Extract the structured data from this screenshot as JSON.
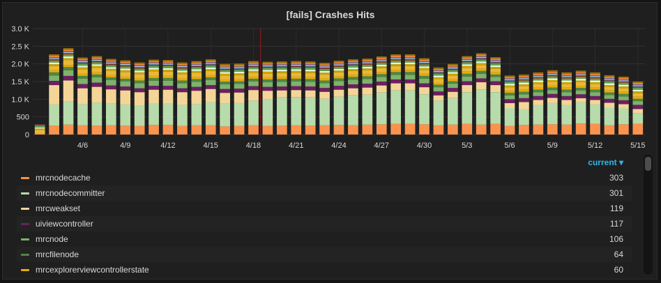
{
  "panel": {
    "title": "[fails] Crashes Hits"
  },
  "legend": {
    "sort_label": "current ▾",
    "items": [
      {
        "name": "mrcnodecache",
        "current": "303",
        "color": "#f9934e"
      },
      {
        "name": "mrcnodecommitter",
        "current": "301",
        "color": "#b7dbab"
      },
      {
        "name": "mrcweakset",
        "current": "119",
        "color": "#f4d598"
      },
      {
        "name": "uiviewcontroller",
        "current": "117",
        "color": "#6d1f62"
      },
      {
        "name": "mrcnode",
        "current": "106",
        "color": "#7eb26d"
      },
      {
        "name": "mrcfilenode",
        "current": "64",
        "color": "#508642"
      },
      {
        "name": "mrcexplorerviewcontrollerstate",
        "current": "60",
        "color": "#e5ac0e"
      }
    ]
  },
  "chart_data": {
    "type": "bar",
    "stacked": true,
    "title": "[fails] Crashes Hits",
    "ylim": [
      0,
      3000
    ],
    "y_ticks": [
      "0",
      "500",
      "1.0 K",
      "1.5 K",
      "2.0 K",
      "2.5 K",
      "3.0 K"
    ],
    "x_tick_labels": [
      "4/6",
      "4/9",
      "4/12",
      "4/15",
      "4/18",
      "4/21",
      "4/24",
      "4/27",
      "4/30",
      "5/3",
      "5/6",
      "5/9",
      "5/12",
      "5/15"
    ],
    "categories": [
      "4/3",
      "4/4",
      "4/5",
      "4/6",
      "4/7",
      "4/8",
      "4/9",
      "4/10",
      "4/11",
      "4/12",
      "4/13",
      "4/14",
      "4/15",
      "4/16",
      "4/17",
      "4/18",
      "4/19",
      "4/20",
      "4/21",
      "4/22",
      "4/23",
      "4/24",
      "4/25",
      "4/26",
      "4/27",
      "4/28",
      "4/29",
      "4/30",
      "5/1",
      "5/2",
      "5/3",
      "5/4",
      "5/5",
      "5/6",
      "5/7",
      "5/8",
      "5/9",
      "5/10",
      "5/11",
      "5/12",
      "5/13",
      "5/14",
      "5/15"
    ],
    "series": [
      {
        "name": "mrcnodecache",
        "color": "#f9934e",
        "values": [
          30,
          250,
          280,
          260,
          250,
          260,
          250,
          240,
          270,
          270,
          240,
          260,
          260,
          230,
          240,
          260,
          240,
          250,
          260,
          250,
          260,
          270,
          260,
          280,
          290,
          300,
          300,
          290,
          260,
          280,
          300,
          280,
          300,
          240,
          270,
          280,
          290,
          280,
          310,
          300,
          260,
          290,
          303
        ]
      },
      {
        "name": "mrcnodecommitter",
        "color": "#b7dbab",
        "values": [
          0,
          600,
          650,
          600,
          650,
          620,
          600,
          580,
          600,
          600,
          600,
          600,
          650,
          650,
          650,
          700,
          750,
          800,
          800,
          800,
          750,
          800,
          850,
          850,
          900,
          950,
          950,
          850,
          700,
          750,
          900,
          1000,
          900,
          500,
          450,
          550,
          600,
          550,
          600,
          550,
          500,
          450,
          301
        ]
      },
      {
        "name": "mrcweakset",
        "color": "#f4d598",
        "values": [
          0,
          550,
          600,
          450,
          450,
          400,
          400,
          380,
          400,
          400,
          360,
          380,
          380,
          300,
          300,
          300,
          250,
          200,
          200,
          200,
          200,
          200,
          200,
          200,
          200,
          200,
          200,
          200,
          150,
          180,
          200,
          200,
          200,
          150,
          200,
          150,
          150,
          150,
          120,
          130,
          140,
          120,
          119
        ]
      },
      {
        "name": "uiviewcontroller",
        "color": "#6d1f62",
        "values": [
          0,
          120,
          130,
          120,
          120,
          110,
          110,
          110,
          110,
          110,
          110,
          110,
          110,
          110,
          110,
          110,
          110,
          110,
          110,
          110,
          110,
          110,
          110,
          110,
          110,
          110,
          110,
          110,
          110,
          110,
          110,
          110,
          110,
          110,
          110,
          110,
          110,
          110,
          110,
          110,
          110,
          110,
          117
        ]
      },
      {
        "name": "mrcnode",
        "color": "#7eb26d",
        "values": [
          0,
          150,
          160,
          150,
          150,
          150,
          140,
          140,
          140,
          140,
          140,
          140,
          140,
          130,
          130,
          130,
          130,
          130,
          130,
          130,
          130,
          130,
          130,
          130,
          130,
          130,
          130,
          130,
          120,
          120,
          130,
          130,
          120,
          110,
          110,
          110,
          110,
          110,
          110,
          110,
          110,
          110,
          106
        ]
      },
      {
        "name": "mrcfilenode",
        "color": "#508642",
        "values": [
          0,
          90,
          90,
          80,
          80,
          80,
          80,
          80,
          80,
          80,
          80,
          80,
          80,
          80,
          80,
          80,
          80,
          80,
          80,
          80,
          80,
          80,
          80,
          80,
          80,
          80,
          80,
          80,
          70,
          70,
          80,
          80,
          70,
          70,
          70,
          70,
          70,
          70,
          70,
          70,
          70,
          70,
          64
        ]
      },
      {
        "name": "mrcexplorerviewcontrollerstate",
        "color": "#e5ac0e",
        "values": [
          0,
          60,
          60,
          60,
          60,
          60,
          60,
          60,
          60,
          60,
          60,
          60,
          60,
          60,
          60,
          60,
          60,
          60,
          60,
          60,
          60,
          60,
          60,
          60,
          60,
          60,
          60,
          60,
          60,
          60,
          60,
          60,
          60,
          60,
          60,
          60,
          60,
          60,
          60,
          60,
          60,
          60,
          60
        ]
      },
      {
        "color": "#eab839",
        "values": [
          100,
          120,
          140,
          130,
          130,
          130,
          130,
          120,
          130,
          120,
          120,
          120,
          120,
          110,
          110,
          110,
          110,
          110,
          110,
          110,
          110,
          110,
          110,
          110,
          110,
          110,
          110,
          110,
          100,
          100,
          110,
          110,
          100,
          100,
          100,
          100,
          100,
          100,
          100,
          100,
          100,
          100,
          100
        ]
      },
      {
        "color": "#cca300",
        "values": [
          40,
          50,
          50,
          50,
          50,
          50,
          50,
          50,
          50,
          50,
          50,
          50,
          50,
          50,
          50,
          50,
          50,
          50,
          50,
          50,
          50,
          50,
          50,
          50,
          50,
          50,
          50,
          50,
          50,
          50,
          50,
          50,
          50,
          50,
          50,
          50,
          50,
          50,
          50,
          50,
          50,
          50,
          50
        ]
      },
      {
        "color": "#e0f9d7",
        "values": [
          30,
          50,
          50,
          50,
          50,
          50,
          50,
          50,
          50,
          50,
          50,
          50,
          50,
          50,
          50,
          50,
          50,
          50,
          50,
          50,
          50,
          50,
          50,
          50,
          50,
          50,
          50,
          50,
          50,
          50,
          50,
          50,
          50,
          50,
          50,
          50,
          50,
          50,
          50,
          50,
          50,
          50,
          50
        ]
      },
      {
        "color": "#629e51",
        "values": [
          60,
          60,
          60,
          60,
          60,
          60,
          60,
          60,
          60,
          60,
          60,
          60,
          60,
          60,
          60,
          60,
          60,
          60,
          60,
          60,
          60,
          60,
          60,
          60,
          60,
          60,
          60,
          60,
          60,
          60,
          60,
          60,
          60,
          60,
          60,
          60,
          60,
          60,
          60,
          60,
          60,
          60,
          60
        ]
      },
      {
        "color": "#bf1b00",
        "values": [
          20,
          20,
          20,
          20,
          20,
          20,
          20,
          20,
          20,
          20,
          20,
          20,
          20,
          20,
          20,
          20,
          20,
          20,
          20,
          20,
          20,
          20,
          20,
          20,
          20,
          20,
          20,
          20,
          20,
          20,
          20,
          20,
          20,
          20,
          20,
          20,
          20,
          20,
          20,
          20,
          20,
          20,
          20
        ]
      },
      {
        "color": "#1f78c1",
        "values": [
          0,
          20,
          20,
          20,
          20,
          20,
          20,
          20,
          20,
          20,
          20,
          20,
          20,
          20,
          20,
          20,
          20,
          20,
          20,
          20,
          20,
          20,
          20,
          20,
          20,
          20,
          20,
          20,
          20,
          20,
          20,
          20,
          20,
          20,
          20,
          20,
          20,
          20,
          20,
          20,
          20,
          20,
          20
        ]
      },
      {
        "color": "#c8c8c8",
        "values": [
          0,
          25,
          25,
          25,
          25,
          25,
          25,
          25,
          25,
          25,
          25,
          25,
          25,
          25,
          25,
          25,
          25,
          25,
          25,
          25,
          25,
          25,
          25,
          25,
          25,
          25,
          25,
          25,
          25,
          25,
          25,
          25,
          25,
          25,
          25,
          25,
          25,
          25,
          25,
          25,
          25,
          25,
          25
        ]
      },
      {
        "color": "#705da0",
        "values": [
          10,
          25,
          25,
          25,
          25,
          25,
          25,
          25,
          25,
          25,
          25,
          25,
          25,
          25,
          25,
          25,
          25,
          25,
          25,
          25,
          25,
          25,
          25,
          25,
          25,
          25,
          25,
          25,
          25,
          25,
          25,
          25,
          25,
          25,
          25,
          25,
          25,
          25,
          25,
          25,
          25,
          25,
          25
        ]
      },
      {
        "color": "#ef843c",
        "values": [
          0,
          40,
          45,
          40,
          40,
          40,
          40,
          40,
          40,
          40,
          40,
          40,
          40,
          40,
          40,
          40,
          40,
          40,
          40,
          40,
          40,
          40,
          40,
          40,
          40,
          40,
          40,
          40,
          40,
          40,
          40,
          40,
          40,
          40,
          40,
          40,
          40,
          40,
          40,
          40,
          40,
          40,
          40
        ]
      },
      {
        "color": "#967302",
        "values": [
          0,
          40,
          40,
          40,
          40,
          40,
          40,
          40,
          40,
          40,
          40,
          40,
          40,
          40,
          40,
          40,
          40,
          40,
          40,
          40,
          40,
          40,
          40,
          40,
          40,
          40,
          40,
          40,
          40,
          40,
          40,
          40,
          40,
          40,
          40,
          40,
          40,
          40,
          40,
          40,
          40,
          40,
          40
        ]
      }
    ],
    "annotation_marker": "4/19"
  }
}
